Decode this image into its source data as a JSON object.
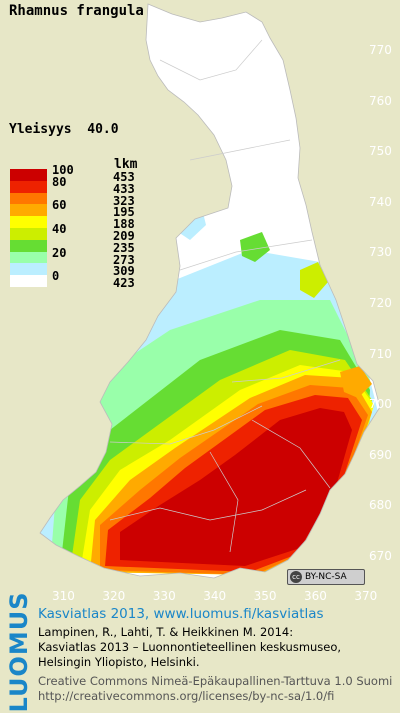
{
  "header": {
    "species": "Rhamnus frangula",
    "frequency_label": "Yleisyys",
    "frequency_value": "40.0"
  },
  "legend": {
    "count_header": "lkm",
    "classes": [
      {
        "label": "100",
        "count": "453",
        "color": "#cc0000"
      },
      {
        "label": "80",
        "count": "433",
        "color": "#ee2200"
      },
      {
        "label": "",
        "count": "323",
        "color": "#ff7700"
      },
      {
        "label": "60",
        "count": "195",
        "color": "#ffaa00"
      },
      {
        "label": "",
        "count": "188",
        "color": "#ffff00"
      },
      {
        "label": "40",
        "count": "209",
        "color": "#ccee00"
      },
      {
        "label": "",
        "count": "235",
        "color": "#66dd33"
      },
      {
        "label": "20",
        "count": "273",
        "color": "#99ffaa"
      },
      {
        "label": "",
        "count": "309",
        "color": "#bbeeff"
      },
      {
        "label": "0",
        "count": "423",
        "color": "#ffffff"
      }
    ]
  },
  "axes": {
    "y_ticks": [
      "770",
      "760",
      "750",
      "740",
      "730",
      "720",
      "710",
      "700",
      "690",
      "680",
      "670"
    ],
    "x_ticks": [
      "310",
      "320",
      "330",
      "340",
      "350",
      "360",
      "370"
    ]
  },
  "footer": {
    "license_badge": "BY-NC-SA",
    "logo_text": "LUOMUS",
    "atlas_link": "Kasviatlas 2013, www.luomus.fi/kasviatlas",
    "citation_lines": [
      "Lampinen, R., Lahti, T. & Heikkinen M. 2014:",
      "Kasviatlas 2013 – Luonnontieteellinen keskusmuseo,",
      "Helsingin Yliopisto, Helsinki."
    ],
    "license_lines": [
      "Creative Commons Nimeä-Epäkaupallinen-Tarttuva 1.0 Suomi",
      "http://creativecommons.org/licenses/by-nc-sa/1.0/fi"
    ]
  },
  "colors": {
    "background": "#e7e7c7",
    "grid_text": "#ffffff",
    "logo_blue": "#1a86c8"
  }
}
